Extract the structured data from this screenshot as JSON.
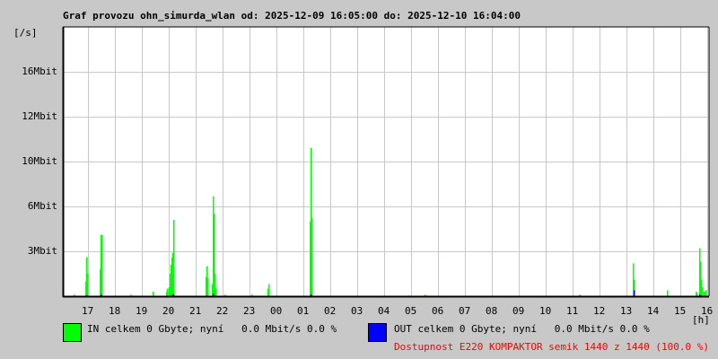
{
  "title": "Graf provozu ohn_simurda_wlan od: 2025-12-09 16:05:00 do: 2025-12-10 16:04:00",
  "chart_data": {
    "type": "bar",
    "title": "Graf provozu ohn_simurda_wlan od: 2025-12-09 16:05:00 do: 2025-12-10 16:04:00",
    "ylabel": "[/s]",
    "xlabel": "[h]",
    "x_start": "16:05",
    "x_end": "16:05",
    "y_ticks": [
      "3Mbit",
      "6Mbit",
      "10Mbit",
      "12Mbit",
      "16Mbit"
    ],
    "y_tick_values": [
      3,
      6,
      10,
      12,
      16
    ],
    "x_ticks": [
      "17",
      "18",
      "19",
      "20",
      "21",
      "22",
      "23",
      "00",
      "01",
      "02",
      "03",
      "04",
      "05",
      "06",
      "07",
      "08",
      "09",
      "10",
      "11",
      "12",
      "13",
      "14",
      "15",
      "16"
    ],
    "grid": true,
    "colors": {
      "in": "#00ff00",
      "out": "#0000ff",
      "grid": "#c8c8c8",
      "availability": "#ff0000"
    },
    "series": [
      {
        "name": "IN",
        "unit": "Mbit/s",
        "points": [
          [
            "16:29",
            0.1
          ],
          [
            "16:55",
            1.0
          ],
          [
            "16:57",
            2.6
          ],
          [
            "16:58",
            1.5
          ],
          [
            "17:27",
            1.8
          ],
          [
            "17:29",
            4.1
          ],
          [
            "17:30",
            4.1
          ],
          [
            "18:35",
            0.1
          ],
          [
            "19:25",
            0.3
          ],
          [
            "19:55",
            0.3
          ],
          [
            "19:57",
            0.5
          ],
          [
            "20:00",
            0.6
          ],
          [
            "20:02",
            1.5
          ],
          [
            "20:04",
            2.1
          ],
          [
            "20:06",
            2.6
          ],
          [
            "20:08",
            2.9
          ],
          [
            "20:10",
            5.1
          ],
          [
            "20:11",
            2.1
          ],
          [
            "21:23",
            1.3
          ],
          [
            "21:25",
            2.0
          ],
          [
            "21:27",
            1.2
          ],
          [
            "21:37",
            0.8
          ],
          [
            "21:39",
            6.9
          ],
          [
            "21:41",
            5.5
          ],
          [
            "21:43",
            1.5
          ],
          [
            "21:45",
            0.5
          ],
          [
            "22:05",
            0.1
          ],
          [
            "23:05",
            0.1
          ],
          [
            "23:40",
            0.5
          ],
          [
            "23:42",
            0.8
          ],
          [
            "01:15",
            5.0
          ],
          [
            "01:17",
            10.6
          ],
          [
            "01:19",
            5.2
          ],
          [
            "04:55",
            0.05
          ],
          [
            "05:30",
            0.1
          ],
          [
            "11:15",
            0.1
          ],
          [
            "11:17",
            0.05
          ],
          [
            "13:15",
            2.2
          ],
          [
            "13:16",
            1.1
          ],
          [
            "14:30",
            0.4
          ],
          [
            "15:35",
            0.3
          ],
          [
            "15:37",
            0.2
          ],
          [
            "15:42",
            3.2
          ],
          [
            "15:44",
            2.3
          ],
          [
            "15:46",
            1.1
          ],
          [
            "15:48",
            0.6
          ],
          [
            "15:52",
            0.3
          ],
          [
            "15:57",
            0.4
          ]
        ]
      },
      {
        "name": "OUT",
        "unit": "Mbit/s",
        "points": [
          [
            "16:57",
            0.05
          ],
          [
            "17:29",
            0.1
          ],
          [
            "20:08",
            0.1
          ],
          [
            "20:10",
            0.1
          ],
          [
            "21:39",
            0.15
          ],
          [
            "01:17",
            0.1
          ],
          [
            "13:16",
            0.4
          ],
          [
            "15:42",
            0.1
          ]
        ]
      }
    ]
  },
  "legend": {
    "in_text": "IN celkem 0 Gbyte; nyní   0.0 Mbit/s 0.0 %",
    "out_text": "OUT celkem 0 Gbyte; nyní   0.0 Mbit/s 0.0 %",
    "availability": "Dostupnost E220 KOMPAKTOR semik 1440 z 1440 (100.0 %)"
  }
}
